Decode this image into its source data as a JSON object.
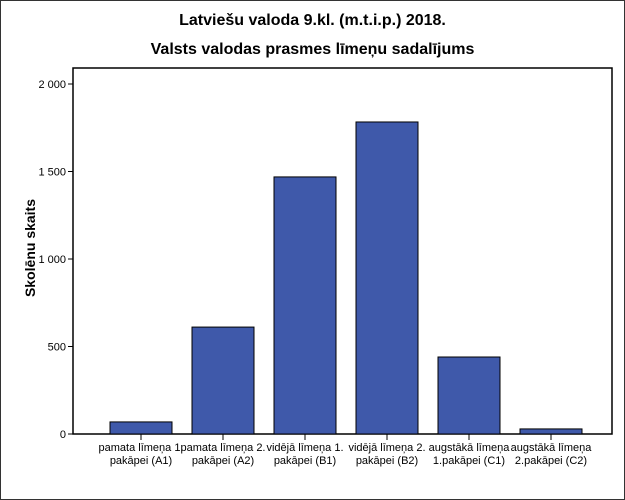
{
  "chart_data": {
    "type": "bar",
    "title": "Latviešu valoda 9.kl. (m.t.i.p.) 2018.",
    "subtitle": "Valsts valodas prasmes līmeņu sadalījums",
    "xlabel": "",
    "ylabel": "Skolēnu skaits",
    "ylim": [
      0,
      2000
    ],
    "yticks": [
      0,
      500,
      1000,
      1500,
      2000
    ],
    "ytick_labels": [
      "0",
      "500",
      "1 000",
      "1 500",
      "2 000"
    ],
    "categories": [
      [
        "pamata līmeņa 1.",
        "pakāpei (A1)"
      ],
      [
        "pamata līmeņa 2.",
        "pakāpei (A2)"
      ],
      [
        "vidējā līmeņa 1.",
        "pakāpei (B1)"
      ],
      [
        "vidējā līmeņa 2.",
        "pakāpei (B2)"
      ],
      [
        "augstākā līmeņa",
        "1.pakāpei (C1)"
      ],
      [
        "augstākā līmeņa",
        "2.pakāpei (C2)"
      ]
    ],
    "values": [
      69,
      611,
      1469,
      1783,
      440,
      29
    ],
    "grid": false,
    "bar_color": "#3F59AA"
  }
}
